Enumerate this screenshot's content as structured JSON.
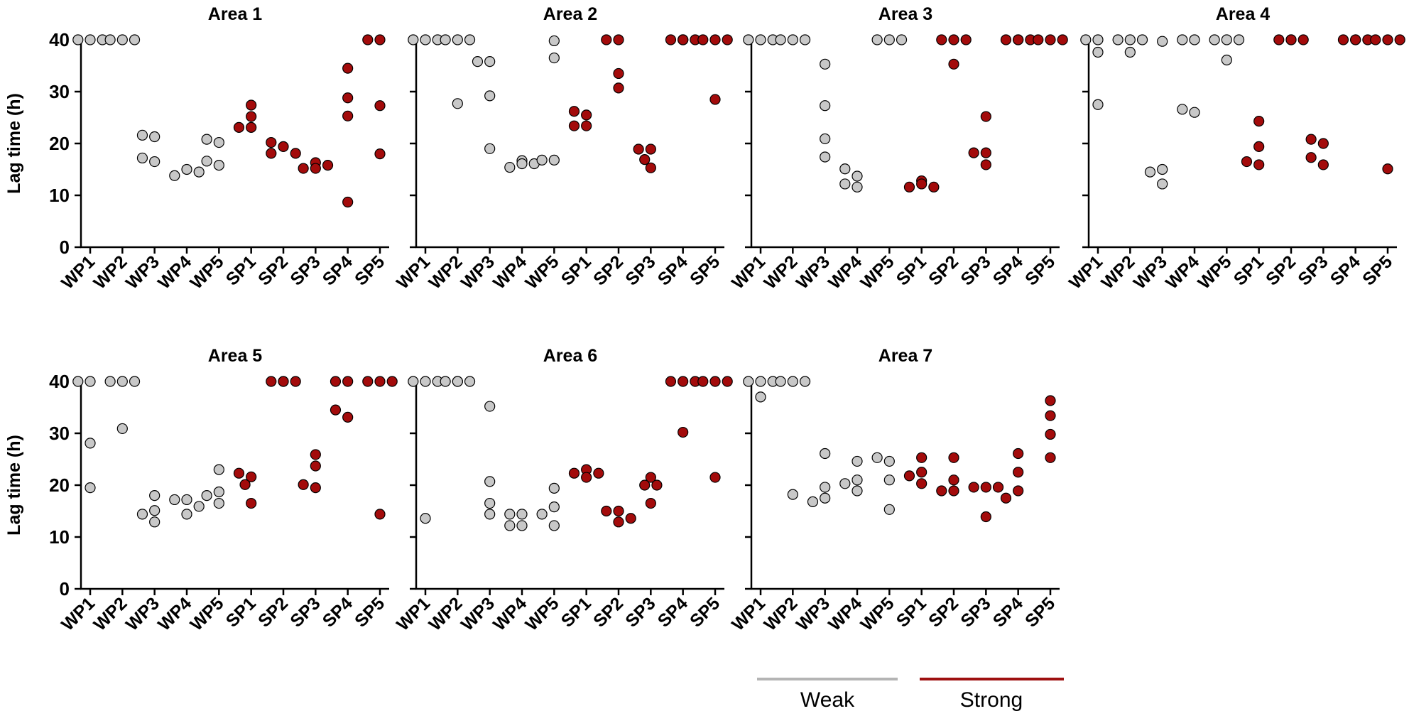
{
  "colors": {
    "weak": "#c8c8c8",
    "strong": "#a30b0b",
    "weak_line": "#b4b4b4",
    "strong_line": "#9e1010",
    "axis": "#000000"
  },
  "chart_data": {
    "type": "scatter",
    "ylabel": "Lag time (h)",
    "ylim": [
      0,
      40
    ],
    "yticks": [
      0,
      10,
      20,
      30,
      40
    ],
    "categories": [
      "WP1",
      "WP2",
      "WP3",
      "WP4",
      "WP5",
      "SP1",
      "SP2",
      "SP3",
      "SP4",
      "SP5"
    ],
    "legend": [
      {
        "label": "Weak",
        "group": "weak"
      },
      {
        "label": "Strong",
        "group": "strong"
      }
    ],
    "panels": [
      {
        "title": "Area 1",
        "series": [
          {
            "category": "WP1",
            "group": "weak",
            "values": [
              40,
              40,
              40
            ]
          },
          {
            "category": "WP2",
            "group": "weak",
            "values": [
              40,
              40,
              40
            ]
          },
          {
            "category": "WP3",
            "group": "weak",
            "values": [
              21.3,
              21.6,
              16.5,
              17.2
            ]
          },
          {
            "category": "WP4",
            "group": "weak",
            "values": [
              15,
              13.8,
              14.5
            ]
          },
          {
            "category": "WP5",
            "group": "weak",
            "values": [
              20.2,
              20.8,
              15.8,
              16.6
            ]
          },
          {
            "category": "SP1",
            "group": "strong",
            "values": [
              27.4,
              25.2,
              23.1,
              23.1
            ]
          },
          {
            "category": "SP2",
            "group": "strong",
            "values": [
              19.4,
              20.2,
              18.1,
              18.1
            ]
          },
          {
            "category": "SP3",
            "group": "strong",
            "values": [
              16.3,
              15.2,
              15.8,
              15.2
            ]
          },
          {
            "category": "SP4",
            "group": "strong",
            "values": [
              34.5,
              28.8,
              25.3,
              8.7
            ]
          },
          {
            "category": "SP5",
            "group": "strong",
            "values": [
              40,
              40,
              27.3,
              18
            ]
          }
        ]
      },
      {
        "title": "Area 2",
        "series": [
          {
            "category": "WP1",
            "group": "weak",
            "values": [
              40,
              40,
              40
            ]
          },
          {
            "category": "WP2",
            "group": "weak",
            "values": [
              40,
              40,
              40,
              27.7
            ]
          },
          {
            "category": "WP3",
            "group": "weak",
            "values": [
              35.8,
              35.8,
              29.2,
              19
            ]
          },
          {
            "category": "WP4",
            "group": "weak",
            "values": [
              16.7,
              15.4,
              16.1,
              16.1
            ]
          },
          {
            "category": "WP5",
            "group": "weak",
            "values": [
              39.8,
              36.5,
              16.8,
              16.8
            ]
          },
          {
            "category": "SP1",
            "group": "strong",
            "values": [
              25.5,
              26.2,
              23.4,
              23.4
            ]
          },
          {
            "category": "SP2",
            "group": "strong",
            "values": [
              40,
              40,
              33.5,
              30.7
            ]
          },
          {
            "category": "SP3",
            "group": "strong",
            "values": [
              18.9,
              18.9,
              15.3,
              16.9
            ]
          },
          {
            "category": "SP4",
            "group": "strong",
            "values": [
              40,
              40,
              40,
              40,
              40
            ]
          },
          {
            "category": "SP5",
            "group": "strong",
            "values": [
              40,
              40,
              40,
              28.5
            ]
          }
        ]
      },
      {
        "title": "Area 3",
        "series": [
          {
            "category": "WP1",
            "group": "weak",
            "values": [
              40,
              40,
              40
            ]
          },
          {
            "category": "WP2",
            "group": "weak",
            "values": [
              40,
              40,
              40
            ]
          },
          {
            "category": "WP3",
            "group": "weak",
            "values": [
              35.3,
              27.3,
              20.9,
              17.4
            ]
          },
          {
            "category": "WP4",
            "group": "weak",
            "values": [
              13.7,
              15.1,
              11.6,
              12.2
            ]
          },
          {
            "category": "WP5",
            "group": "weak",
            "values": [
              40,
              40,
              40
            ]
          },
          {
            "category": "SP1",
            "group": "strong",
            "values": [
              12.8,
              11.6,
              11.6,
              12.2
            ]
          },
          {
            "category": "SP2",
            "group": "strong",
            "values": [
              40,
              40,
              40,
              35.3
            ]
          },
          {
            "category": "SP3",
            "group": "strong",
            "values": [
              25.2,
              18.2,
              18.2,
              15.9
            ]
          },
          {
            "category": "SP4",
            "group": "strong",
            "values": [
              40,
              40,
              40,
              40
            ]
          },
          {
            "category": "SP5",
            "group": "strong",
            "values": [
              40,
              40,
              40
            ]
          }
        ]
      },
      {
        "title": "Area 4",
        "series": [
          {
            "category": "WP1",
            "group": "weak",
            "values": [
              40,
              40,
              37.6,
              27.5
            ]
          },
          {
            "category": "WP2",
            "group": "weak",
            "values": [
              40,
              40,
              40,
              37.6
            ]
          },
          {
            "category": "WP3",
            "group": "weak",
            "values": [
              39.7,
              15,
              14.5,
              12.2
            ]
          },
          {
            "category": "WP4",
            "group": "weak",
            "values": [
              40,
              40,
              26,
              26.6
            ]
          },
          {
            "category": "WP5",
            "group": "weak",
            "values": [
              40,
              40,
              40,
              36.1
            ]
          },
          {
            "category": "SP1",
            "group": "strong",
            "values": [
              24.3,
              19.4,
              15.9,
              16.5
            ]
          },
          {
            "category": "SP2",
            "group": "strong",
            "values": [
              40,
              40,
              40,
              40
            ]
          },
          {
            "category": "SP3",
            "group": "strong",
            "values": [
              20,
              20.8,
              15.9,
              17.3
            ]
          },
          {
            "category": "SP4",
            "group": "strong",
            "values": [
              40,
              40,
              40,
              40
            ]
          },
          {
            "category": "SP5",
            "group": "strong",
            "values": [
              40,
              40,
              40,
              15.1
            ]
          }
        ]
      },
      {
        "title": "Area 5",
        "series": [
          {
            "category": "WP1",
            "group": "weak",
            "values": [
              40,
              40,
              28.1,
              19.5
            ]
          },
          {
            "category": "WP2",
            "group": "weak",
            "values": [
              40,
              40,
              40,
              30.9
            ]
          },
          {
            "category": "WP3",
            "group": "weak",
            "values": [
              18,
              15.1,
              14.4,
              12.9
            ]
          },
          {
            "category": "WP4",
            "group": "weak",
            "values": [
              17.2,
              17.2,
              15.9,
              14.4
            ]
          },
          {
            "category": "WP5",
            "group": "weak",
            "values": [
              23,
              18.7,
              18,
              16.5
            ]
          },
          {
            "category": "SP1",
            "group": "strong",
            "values": [
              21.6,
              22.3,
              20.1,
              16.5
            ]
          },
          {
            "category": "SP2",
            "group": "strong",
            "values": [
              40,
              40,
              40,
              40
            ]
          },
          {
            "category": "SP3",
            "group": "strong",
            "values": [
              25.9,
              23.7,
              19.5,
              20.1
            ]
          },
          {
            "category": "SP4",
            "group": "strong",
            "values": [
              40,
              40,
              33.1,
              34.5
            ]
          },
          {
            "category": "SP5",
            "group": "strong",
            "values": [
              40,
              40,
              40,
              14.4
            ]
          }
        ]
      },
      {
        "title": "Area 6",
        "series": [
          {
            "category": "WP1",
            "group": "weak",
            "values": [
              40,
              40,
              40,
              13.6
            ]
          },
          {
            "category": "WP2",
            "group": "weak",
            "values": [
              40,
              40,
              40,
              40
            ]
          },
          {
            "category": "WP3",
            "group": "weak",
            "values": [
              35.2,
              20.7,
              16.5,
              14.4
            ]
          },
          {
            "category": "WP4",
            "group": "weak",
            "values": [
              14.4,
              14.4,
              12.2,
              12.2
            ]
          },
          {
            "category": "WP5",
            "group": "weak",
            "values": [
              19.4,
              15.8,
              14.4,
              12.2
            ]
          },
          {
            "category": "SP1",
            "group": "strong",
            "values": [
              23,
              22.3,
              22.3,
              21.5
            ]
          },
          {
            "category": "SP2",
            "group": "strong",
            "values": [
              15,
              15,
              13.6,
              12.9
            ]
          },
          {
            "category": "SP3",
            "group": "strong",
            "values": [
              21.5,
              20,
              20,
              16.5
            ]
          },
          {
            "category": "SP4",
            "group": "strong",
            "values": [
              40,
              40,
              40,
              30.2
            ]
          },
          {
            "category": "SP5",
            "group": "strong",
            "values": [
              40,
              40,
              40,
              21.5
            ]
          }
        ]
      },
      {
        "title": "Area 7",
        "series": [
          {
            "category": "WP1",
            "group": "weak",
            "values": [
              40,
              40,
              40,
              37
            ]
          },
          {
            "category": "WP2",
            "group": "weak",
            "values": [
              40,
              40,
              40,
              18.2
            ]
          },
          {
            "category": "WP3",
            "group": "weak",
            "values": [
              26.1,
              19.6,
              17.5,
              16.8
            ]
          },
          {
            "category": "WP4",
            "group": "weak",
            "values": [
              24.6,
              21,
              20.3,
              18.9
            ]
          },
          {
            "category": "WP5",
            "group": "weak",
            "values": [
              24.6,
              25.3,
              21,
              15.3
            ]
          },
          {
            "category": "SP1",
            "group": "strong",
            "values": [
              22.5,
              25.3,
              21.8,
              20.3
            ]
          },
          {
            "category": "SP2",
            "group": "strong",
            "values": [
              25.3,
              21,
              18.9,
              18.9
            ]
          },
          {
            "category": "SP3",
            "group": "strong",
            "values": [
              19.6,
              19.6,
              19.6,
              13.9
            ]
          },
          {
            "category": "SP4",
            "group": "strong",
            "values": [
              26.1,
              22.5,
              18.9,
              17.5
            ]
          },
          {
            "category": "SP5",
            "group": "strong",
            "values": [
              36.3,
              33.4,
              29.8,
              25.3
            ]
          }
        ]
      }
    ]
  }
}
